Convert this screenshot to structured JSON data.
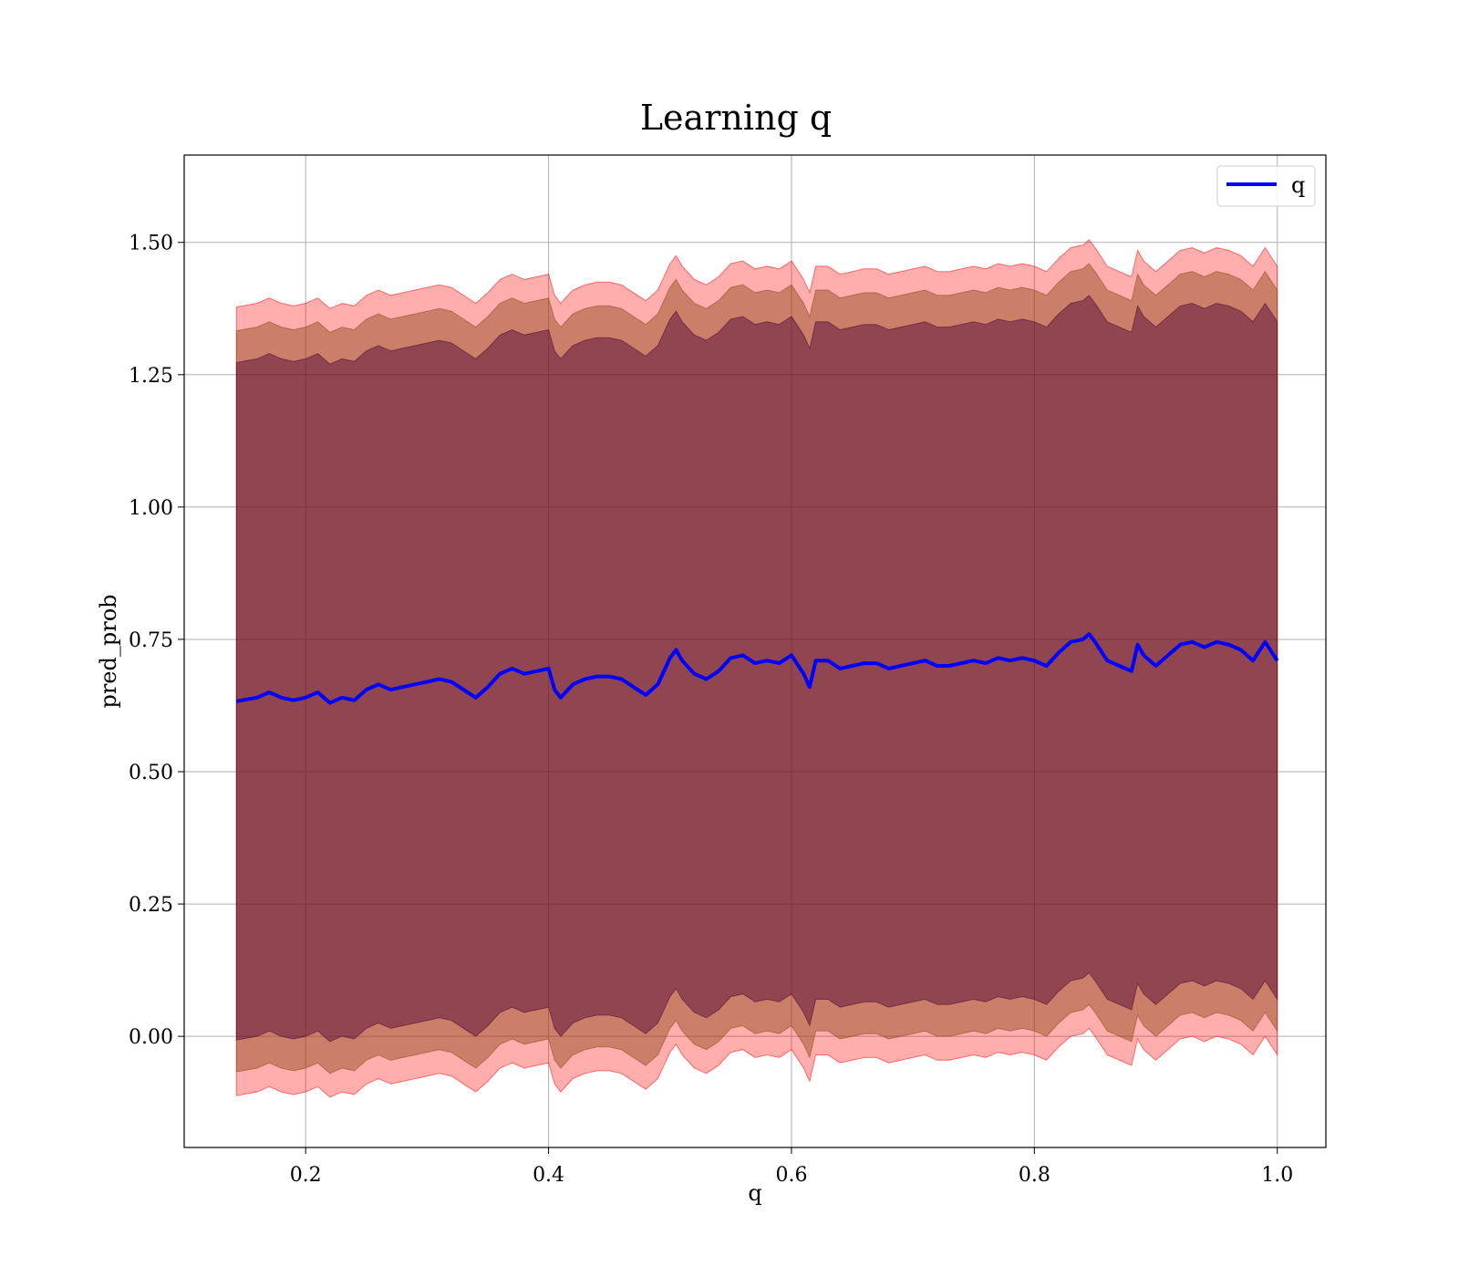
{
  "chart_data": {
    "type": "area",
    "title": "Learning q",
    "xlabel": "q",
    "ylabel": "pred_prob",
    "xlim": [
      0.1,
      1.04
    ],
    "ylim": [
      -0.21,
      1.665
    ],
    "x_ticks": [
      {
        "value": 0.2,
        "label": "0.2"
      },
      {
        "value": 0.4,
        "label": "0.4"
      },
      {
        "value": 0.6,
        "label": "0.6"
      },
      {
        "value": 0.8,
        "label": "0.8"
      },
      {
        "value": 1.0,
        "label": "1.0"
      }
    ],
    "y_ticks": [
      {
        "value": 0.0,
        "label": "0.00"
      },
      {
        "value": 0.25,
        "label": "0.25"
      },
      {
        "value": 0.5,
        "label": "0.50"
      },
      {
        "value": 0.75,
        "label": "0.75"
      },
      {
        "value": 1.0,
        "label": "1.00"
      },
      {
        "value": 1.25,
        "label": "1.25"
      },
      {
        "value": 1.5,
        "label": "1.50"
      }
    ],
    "grid": true,
    "legend": {
      "position": "top-right",
      "entries": [
        {
          "label": "q",
          "color": "#0000ff"
        }
      ]
    },
    "bands": [
      {
        "color": "#ff0000",
        "opacity": 0.32,
        "half_width": 0.745
      },
      {
        "color": "#8b4513",
        "opacity": 0.45,
        "half_width": 0.7
      },
      {
        "color": "#4b0033",
        "opacity": 0.45,
        "half_width": 0.64
      }
    ],
    "series": [
      {
        "name": "q",
        "color": "#0000ff",
        "x": [
          0.143,
          0.16,
          0.17,
          0.18,
          0.19,
          0.2,
          0.21,
          0.22,
          0.23,
          0.24,
          0.25,
          0.26,
          0.27,
          0.28,
          0.29,
          0.3,
          0.31,
          0.32,
          0.33,
          0.34,
          0.35,
          0.36,
          0.37,
          0.38,
          0.39,
          0.4,
          0.405,
          0.41,
          0.42,
          0.43,
          0.44,
          0.45,
          0.46,
          0.47,
          0.48,
          0.49,
          0.5,
          0.505,
          0.51,
          0.52,
          0.53,
          0.54,
          0.55,
          0.56,
          0.57,
          0.58,
          0.59,
          0.6,
          0.61,
          0.615,
          0.62,
          0.63,
          0.64,
          0.65,
          0.66,
          0.67,
          0.68,
          0.69,
          0.7,
          0.71,
          0.72,
          0.73,
          0.74,
          0.75,
          0.76,
          0.77,
          0.78,
          0.79,
          0.8,
          0.81,
          0.82,
          0.83,
          0.84,
          0.845,
          0.85,
          0.86,
          0.87,
          0.88,
          0.885,
          0.89,
          0.9,
          0.91,
          0.92,
          0.93,
          0.94,
          0.95,
          0.96,
          0.97,
          0.98,
          0.99,
          1.0
        ],
        "y": [
          0.633,
          0.64,
          0.65,
          0.64,
          0.635,
          0.64,
          0.65,
          0.63,
          0.64,
          0.635,
          0.655,
          0.665,
          0.655,
          0.66,
          0.665,
          0.67,
          0.675,
          0.67,
          0.655,
          0.64,
          0.66,
          0.685,
          0.695,
          0.685,
          0.69,
          0.695,
          0.655,
          0.64,
          0.665,
          0.675,
          0.68,
          0.68,
          0.675,
          0.66,
          0.645,
          0.665,
          0.715,
          0.73,
          0.71,
          0.685,
          0.675,
          0.69,
          0.715,
          0.72,
          0.705,
          0.71,
          0.705,
          0.72,
          0.685,
          0.66,
          0.71,
          0.71,
          0.695,
          0.7,
          0.705,
          0.705,
          0.695,
          0.7,
          0.705,
          0.71,
          0.7,
          0.7,
          0.705,
          0.71,
          0.705,
          0.715,
          0.71,
          0.715,
          0.71,
          0.7,
          0.725,
          0.745,
          0.75,
          0.76,
          0.745,
          0.71,
          0.7,
          0.69,
          0.74,
          0.72,
          0.7,
          0.72,
          0.74,
          0.745,
          0.735,
          0.745,
          0.74,
          0.73,
          0.71,
          0.745,
          0.71
        ]
      }
    ]
  }
}
